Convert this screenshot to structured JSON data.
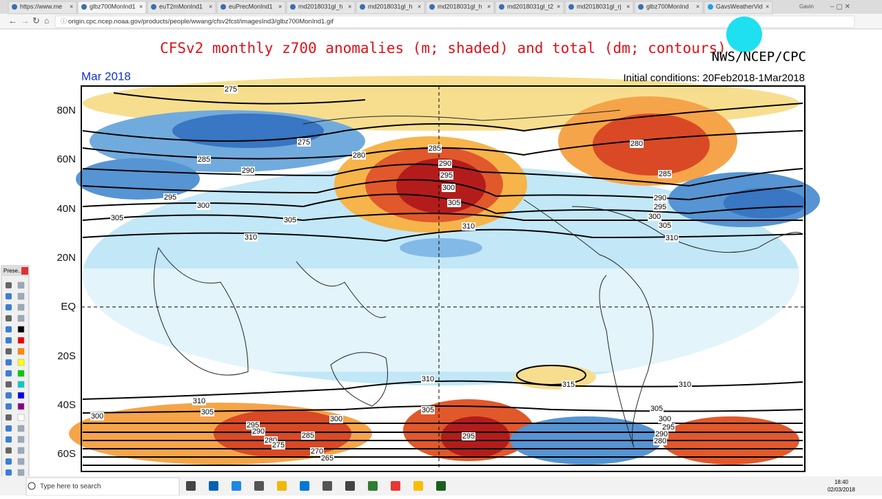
{
  "browser": {
    "tabs": [
      "https://www.me",
      "glbz700MonInd1",
      "euT2mMonInd1",
      "euPrecMonInd1",
      "md2018031gl_h",
      "md2018031gl_h",
      "md2018031gl_h",
      "md2018031gl_t2",
      "md2018031gl_rj",
      "glbz700MonInd",
      "GavsWeatherVid"
    ],
    "profile": "Gavin",
    "url": "origin.cpc.ncep.noaa.gov/products/people/wwang/cfsv2fcst/imagesInd3/glbz700MonInd1.gif"
  },
  "map": {
    "title": "CFSv2 monthly z700 anomalies (m; shaded) and total (dm; contours)",
    "agency": "NWS/NCEP/CPC",
    "month": "Mar 2018",
    "initial": "Initial conditions: 20Feb2018-1Mar2018",
    "lat_labels": [
      "80N",
      "60N",
      "40N",
      "20N",
      "EQ",
      "20S",
      "40S",
      "60S"
    ],
    "contour_labels": [
      "275",
      "275",
      "285",
      "290",
      "295",
      "300",
      "305",
      "305",
      "310",
      "280",
      "285",
      "290",
      "295",
      "300",
      "305",
      "310",
      "280",
      "285",
      "290",
      "295",
      "300",
      "305",
      "310",
      "310",
      "315",
      "310",
      "310",
      "305",
      "300",
      "295",
      "290",
      "280",
      "275",
      "285",
      "300",
      "270",
      "265",
      "305",
      "295",
      "305",
      "300",
      "295",
      "290",
      "280"
    ]
  },
  "side_panel": {
    "title": "Prese..."
  },
  "taskbar": {
    "search": "Type here to search",
    "time": "18:40",
    "date": "02/03/2018"
  }
}
